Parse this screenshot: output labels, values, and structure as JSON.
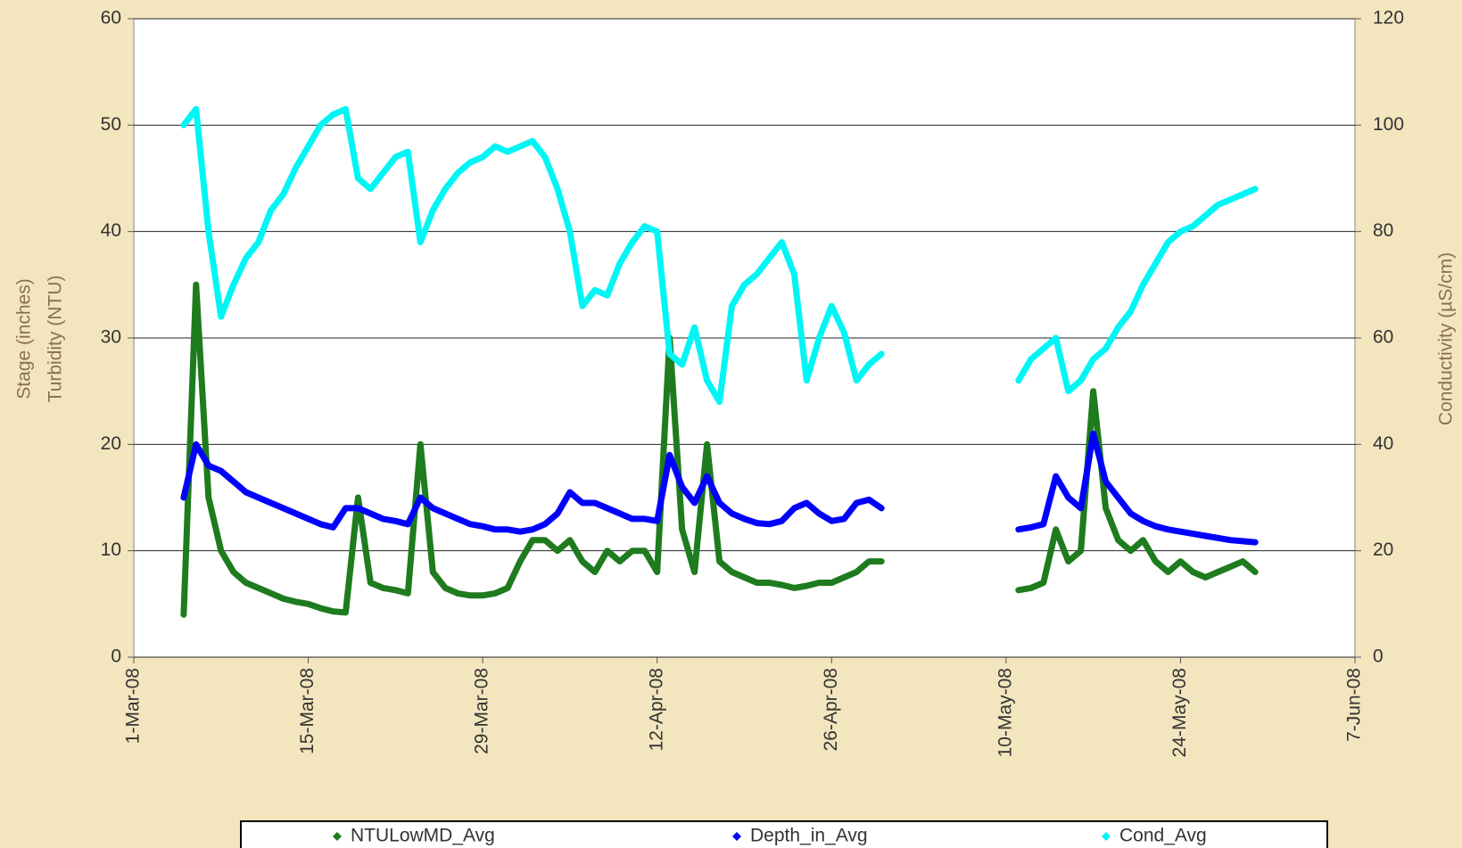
{
  "chart_data": {
    "type": "line",
    "y_label": [
      "Stage (inches)",
      "Turbidity (NTU)"
    ],
    "y2_label": "Conductivity (µS/cm)",
    "xlim": [
      "2008-03-01",
      "2008-06-07"
    ],
    "xticks": [
      {
        "value": "2008-03-01",
        "label": "1-Mar-08"
      },
      {
        "value": "2008-03-15",
        "label": "15-Mar-08"
      },
      {
        "value": "2008-03-29",
        "label": "29-Mar-08"
      },
      {
        "value": "2008-04-12",
        "label": "12-Apr-08"
      },
      {
        "value": "2008-04-26",
        "label": "26-Apr-08"
      },
      {
        "value": "2008-05-10",
        "label": "10-May-08"
      },
      {
        "value": "2008-05-24",
        "label": "24-May-08"
      },
      {
        "value": "2008-06-07",
        "label": "7-Jun-08"
      }
    ],
    "ylim": [
      0,
      60
    ],
    "yticks": [
      0,
      10,
      20,
      30,
      40,
      50,
      60
    ],
    "y2lim": [
      0,
      120
    ],
    "y2ticks": [
      0,
      20,
      40,
      60,
      80,
      100,
      120
    ],
    "grid": true,
    "x": [
      "2008-03-05",
      "2008-03-06",
      "2008-03-07",
      "2008-03-08",
      "2008-03-09",
      "2008-03-10",
      "2008-03-11",
      "2008-03-12",
      "2008-03-13",
      "2008-03-14",
      "2008-03-15",
      "2008-03-16",
      "2008-03-17",
      "2008-03-18",
      "2008-03-19",
      "2008-03-20",
      "2008-03-21",
      "2008-03-22",
      "2008-03-23",
      "2008-03-24",
      "2008-03-25",
      "2008-03-26",
      "2008-03-27",
      "2008-03-28",
      "2008-03-29",
      "2008-03-30",
      "2008-03-31",
      "2008-04-01",
      "2008-04-02",
      "2008-04-03",
      "2008-04-04",
      "2008-04-05",
      "2008-04-06",
      "2008-04-07",
      "2008-04-08",
      "2008-04-09",
      "2008-04-10",
      "2008-04-11",
      "2008-04-12",
      "2008-04-13",
      "2008-04-14",
      "2008-04-15",
      "2008-04-16",
      "2008-04-17",
      "2008-04-18",
      "2008-04-19",
      "2008-04-20",
      "2008-04-21",
      "2008-04-22",
      "2008-04-23",
      "2008-04-24",
      "2008-04-25",
      "2008-04-26",
      "2008-04-27",
      "2008-04-28",
      "2008-04-29",
      "2008-04-30",
      "2008-05-05",
      "2008-05-11",
      "2008-05-12",
      "2008-05-13",
      "2008-05-14",
      "2008-05-15",
      "2008-05-16",
      "2008-05-17",
      "2008-05-18",
      "2008-05-19",
      "2008-05-20",
      "2008-05-21",
      "2008-05-22",
      "2008-05-23",
      "2008-05-24",
      "2008-05-25",
      "2008-05-26",
      "2008-05-27",
      "2008-05-28",
      "2008-05-29",
      "2008-05-30"
    ],
    "series": [
      {
        "name": "NTULowMD_Avg",
        "color": "#1e7b1e",
        "values": [
          4,
          35,
          15,
          10,
          8,
          7,
          6.5,
          6,
          5.5,
          5.2,
          5,
          4.6,
          4.3,
          4.2,
          15,
          7,
          6.5,
          6.3,
          6,
          20,
          8,
          6.5,
          6,
          5.8,
          5.8,
          6,
          6.5,
          9,
          11,
          11,
          10,
          11,
          9,
          8,
          10,
          9,
          10,
          10,
          8,
          30,
          12,
          8,
          20,
          9,
          8,
          7.5,
          7,
          7,
          6.8,
          6.5,
          6.7,
          7,
          7,
          7.5,
          8,
          9,
          9,
          null,
          6.3,
          6.5,
          7,
          12,
          9,
          10,
          25,
          14,
          11,
          10,
          11,
          9,
          8,
          9,
          8,
          7.5,
          8,
          8.5,
          9,
          8
        ]
      },
      {
        "name": "Depth_in_Avg",
        "color": "#0000ff",
        "values": [
          15,
          20,
          18,
          17.5,
          16.5,
          15.5,
          15,
          14.5,
          14,
          13.5,
          13,
          12.5,
          12.2,
          14,
          14,
          13.5,
          13,
          12.8,
          12.5,
          15,
          14,
          13.5,
          13,
          12.5,
          12.3,
          12,
          12,
          11.8,
          12,
          12.5,
          13.5,
          15.5,
          14.5,
          14.5,
          14,
          13.5,
          13,
          13,
          12.8,
          19,
          16,
          14.5,
          17,
          14.5,
          13.5,
          13,
          12.6,
          12.5,
          12.8,
          14,
          14.5,
          13.5,
          12.8,
          13,
          14.5,
          14.8,
          14,
          null,
          12,
          12.2,
          12.5,
          17,
          15,
          14,
          21,
          16.5,
          15,
          13.5,
          12.8,
          12.3,
          12,
          11.8,
          11.6,
          11.4,
          11.2,
          11,
          10.9,
          10.8
        ]
      },
      {
        "name": "Cond_Avg",
        "color": "#00f5f5",
        "axis": "y2",
        "values": [
          100,
          103,
          80,
          64,
          70,
          75,
          78,
          84,
          87,
          92,
          96,
          100,
          102,
          103,
          90,
          88,
          91,
          94,
          95,
          78,
          84,
          88,
          91,
          93,
          94,
          96,
          95,
          96,
          97,
          94,
          88,
          80,
          66,
          69,
          68,
          74,
          78,
          81,
          80,
          57,
          55,
          62,
          52,
          48,
          66,
          70,
          72,
          75,
          78,
          72,
          52,
          60,
          66,
          61,
          52,
          55,
          57,
          null,
          52,
          56,
          58,
          60,
          50,
          52,
          56,
          58,
          62,
          65,
          70,
          74,
          78,
          80,
          81,
          83,
          85,
          86,
          87,
          88
        ]
      }
    ]
  }
}
